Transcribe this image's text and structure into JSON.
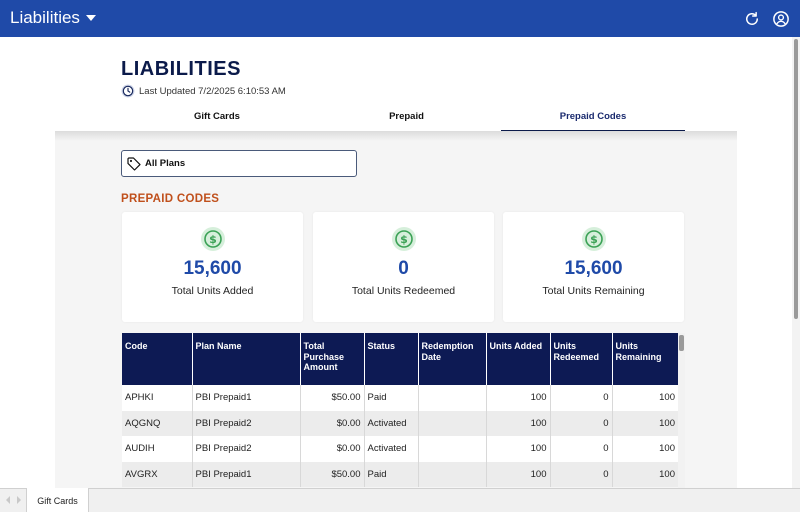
{
  "topbar": {
    "title": "Liabilities",
    "refresh_icon": "refresh-icon",
    "account_icon": "account-circle-icon"
  },
  "header": {
    "title": "LIABILITIES",
    "last_updated": "Last Updated 7/2/2025 6:10:53 AM"
  },
  "tabs": [
    {
      "label": "Gift Cards",
      "active": false
    },
    {
      "label": "Prepaid",
      "active": false
    },
    {
      "label": "Prepaid Codes",
      "active": true
    }
  ],
  "filter": {
    "label": "All Plans"
  },
  "section": {
    "title": "PREPAID CODES"
  },
  "cards": [
    {
      "value": "15,600",
      "label": "Total Units Added"
    },
    {
      "value": "0",
      "label": "Total Units Redeemed"
    },
    {
      "value": "15,600",
      "label": "Total Units Remaining"
    }
  ],
  "table": {
    "columns": [
      "Code",
      "Plan Name",
      "Total Purchase Amount",
      "Status",
      "Redemption Date",
      "Units Added",
      "Units Redeemed",
      "Units Remaining"
    ],
    "rows": [
      [
        "APHKI",
        "PBI Prepaid1",
        "$50.00",
        "Paid",
        "",
        "100",
        "0",
        "100"
      ],
      [
        "AQGNQ",
        "PBI Prepaid2",
        "$0.00",
        "Activated",
        "",
        "100",
        "0",
        "100"
      ],
      [
        "AUDIH",
        "PBI Prepaid2",
        "$0.00",
        "Activated",
        "",
        "100",
        "0",
        "100"
      ],
      [
        "AVGRX",
        "PBI Prepaid1",
        "$50.00",
        "Paid",
        "",
        "100",
        "0",
        "100"
      ]
    ]
  },
  "sheetbar": {
    "active_sheet": "Gift Cards"
  },
  "colors": {
    "topbar": "#1f4aa8",
    "table_header": "#0d1a54",
    "section_title": "#c0501c",
    "card_value": "#1f4aa8",
    "dollar_icon": "#3aa155"
  }
}
